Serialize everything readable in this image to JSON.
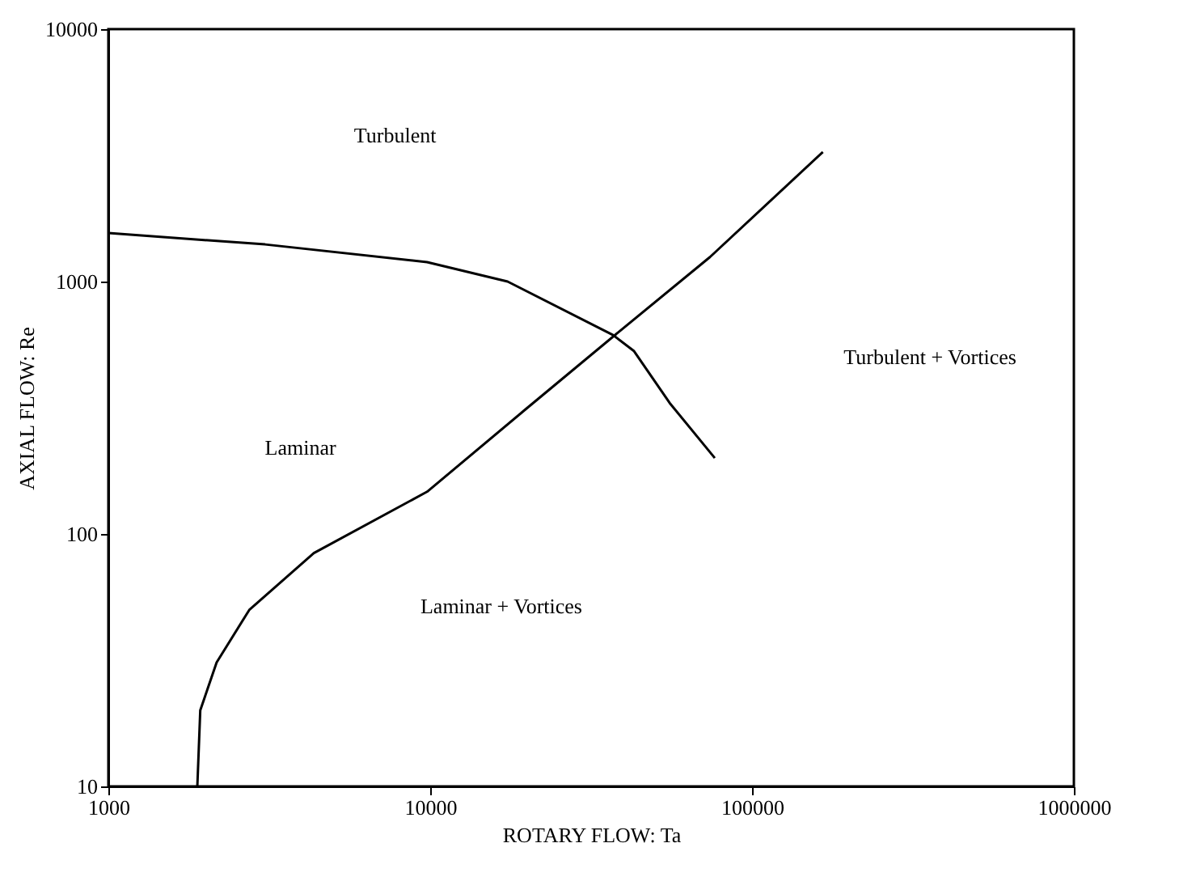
{
  "chart_data": {
    "type": "line",
    "xlabel": "ROTARY FLOW: Ta",
    "ylabel": "AXIAL FLOW: Re",
    "log": "xy",
    "xlim": [
      1000,
      1000000
    ],
    "ylim": [
      10,
      10000
    ],
    "xticks": [
      1000,
      10000,
      100000,
      1000000
    ],
    "yticks": [
      10,
      100,
      1000,
      10000
    ],
    "grid": false,
    "legend": false,
    "marker": "none",
    "line_style": "solid",
    "series": [
      {
        "color": "#000000",
        "x": [
          1000,
          3070,
          9780,
          17400,
          37000,
          43000,
          55500,
          76600
        ],
        "values": [
          1556,
          1403,
          1194,
          1000,
          614,
          530,
          330,
          200
        ]
      },
      {
        "color": "#000000",
        "x": [
          1890,
          1930,
          2170,
          2740,
          4350,
          9780,
          19500,
          39200,
          74000,
          166000
        ],
        "values": [
          10,
          20,
          31,
          50,
          84,
          147,
          307,
          643,
          1250,
          3260
        ]
      }
    ],
    "annotations": [
      "Turbulent",
      "Laminar",
      "Laminar + Vortices",
      "Turbulent + Vortices"
    ]
  }
}
